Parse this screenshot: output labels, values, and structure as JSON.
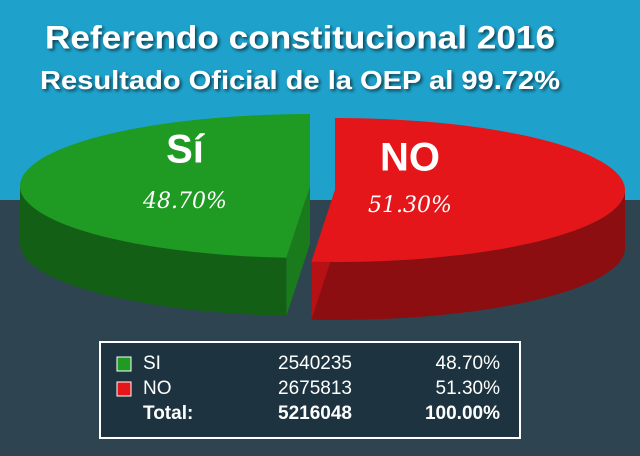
{
  "chart_data": {
    "type": "pie",
    "title": "Referendo constitucional 2016",
    "subtitle": "Resultado Oficial de la OEP al 99.72%",
    "categories": [
      "Sí",
      "NO"
    ],
    "values": [
      48.7,
      51.3
    ],
    "value_labels": [
      "48.70%",
      "51.30%"
    ],
    "colors": [
      "#1f9a22",
      "#e4161a"
    ]
  },
  "table": {
    "rows": [
      [
        "SI",
        2540235,
        "48.70%"
      ],
      [
        "NO",
        2675813,
        "51.30%"
      ],
      [
        "Total:",
        5216048,
        "100.00%"
      ]
    ]
  }
}
